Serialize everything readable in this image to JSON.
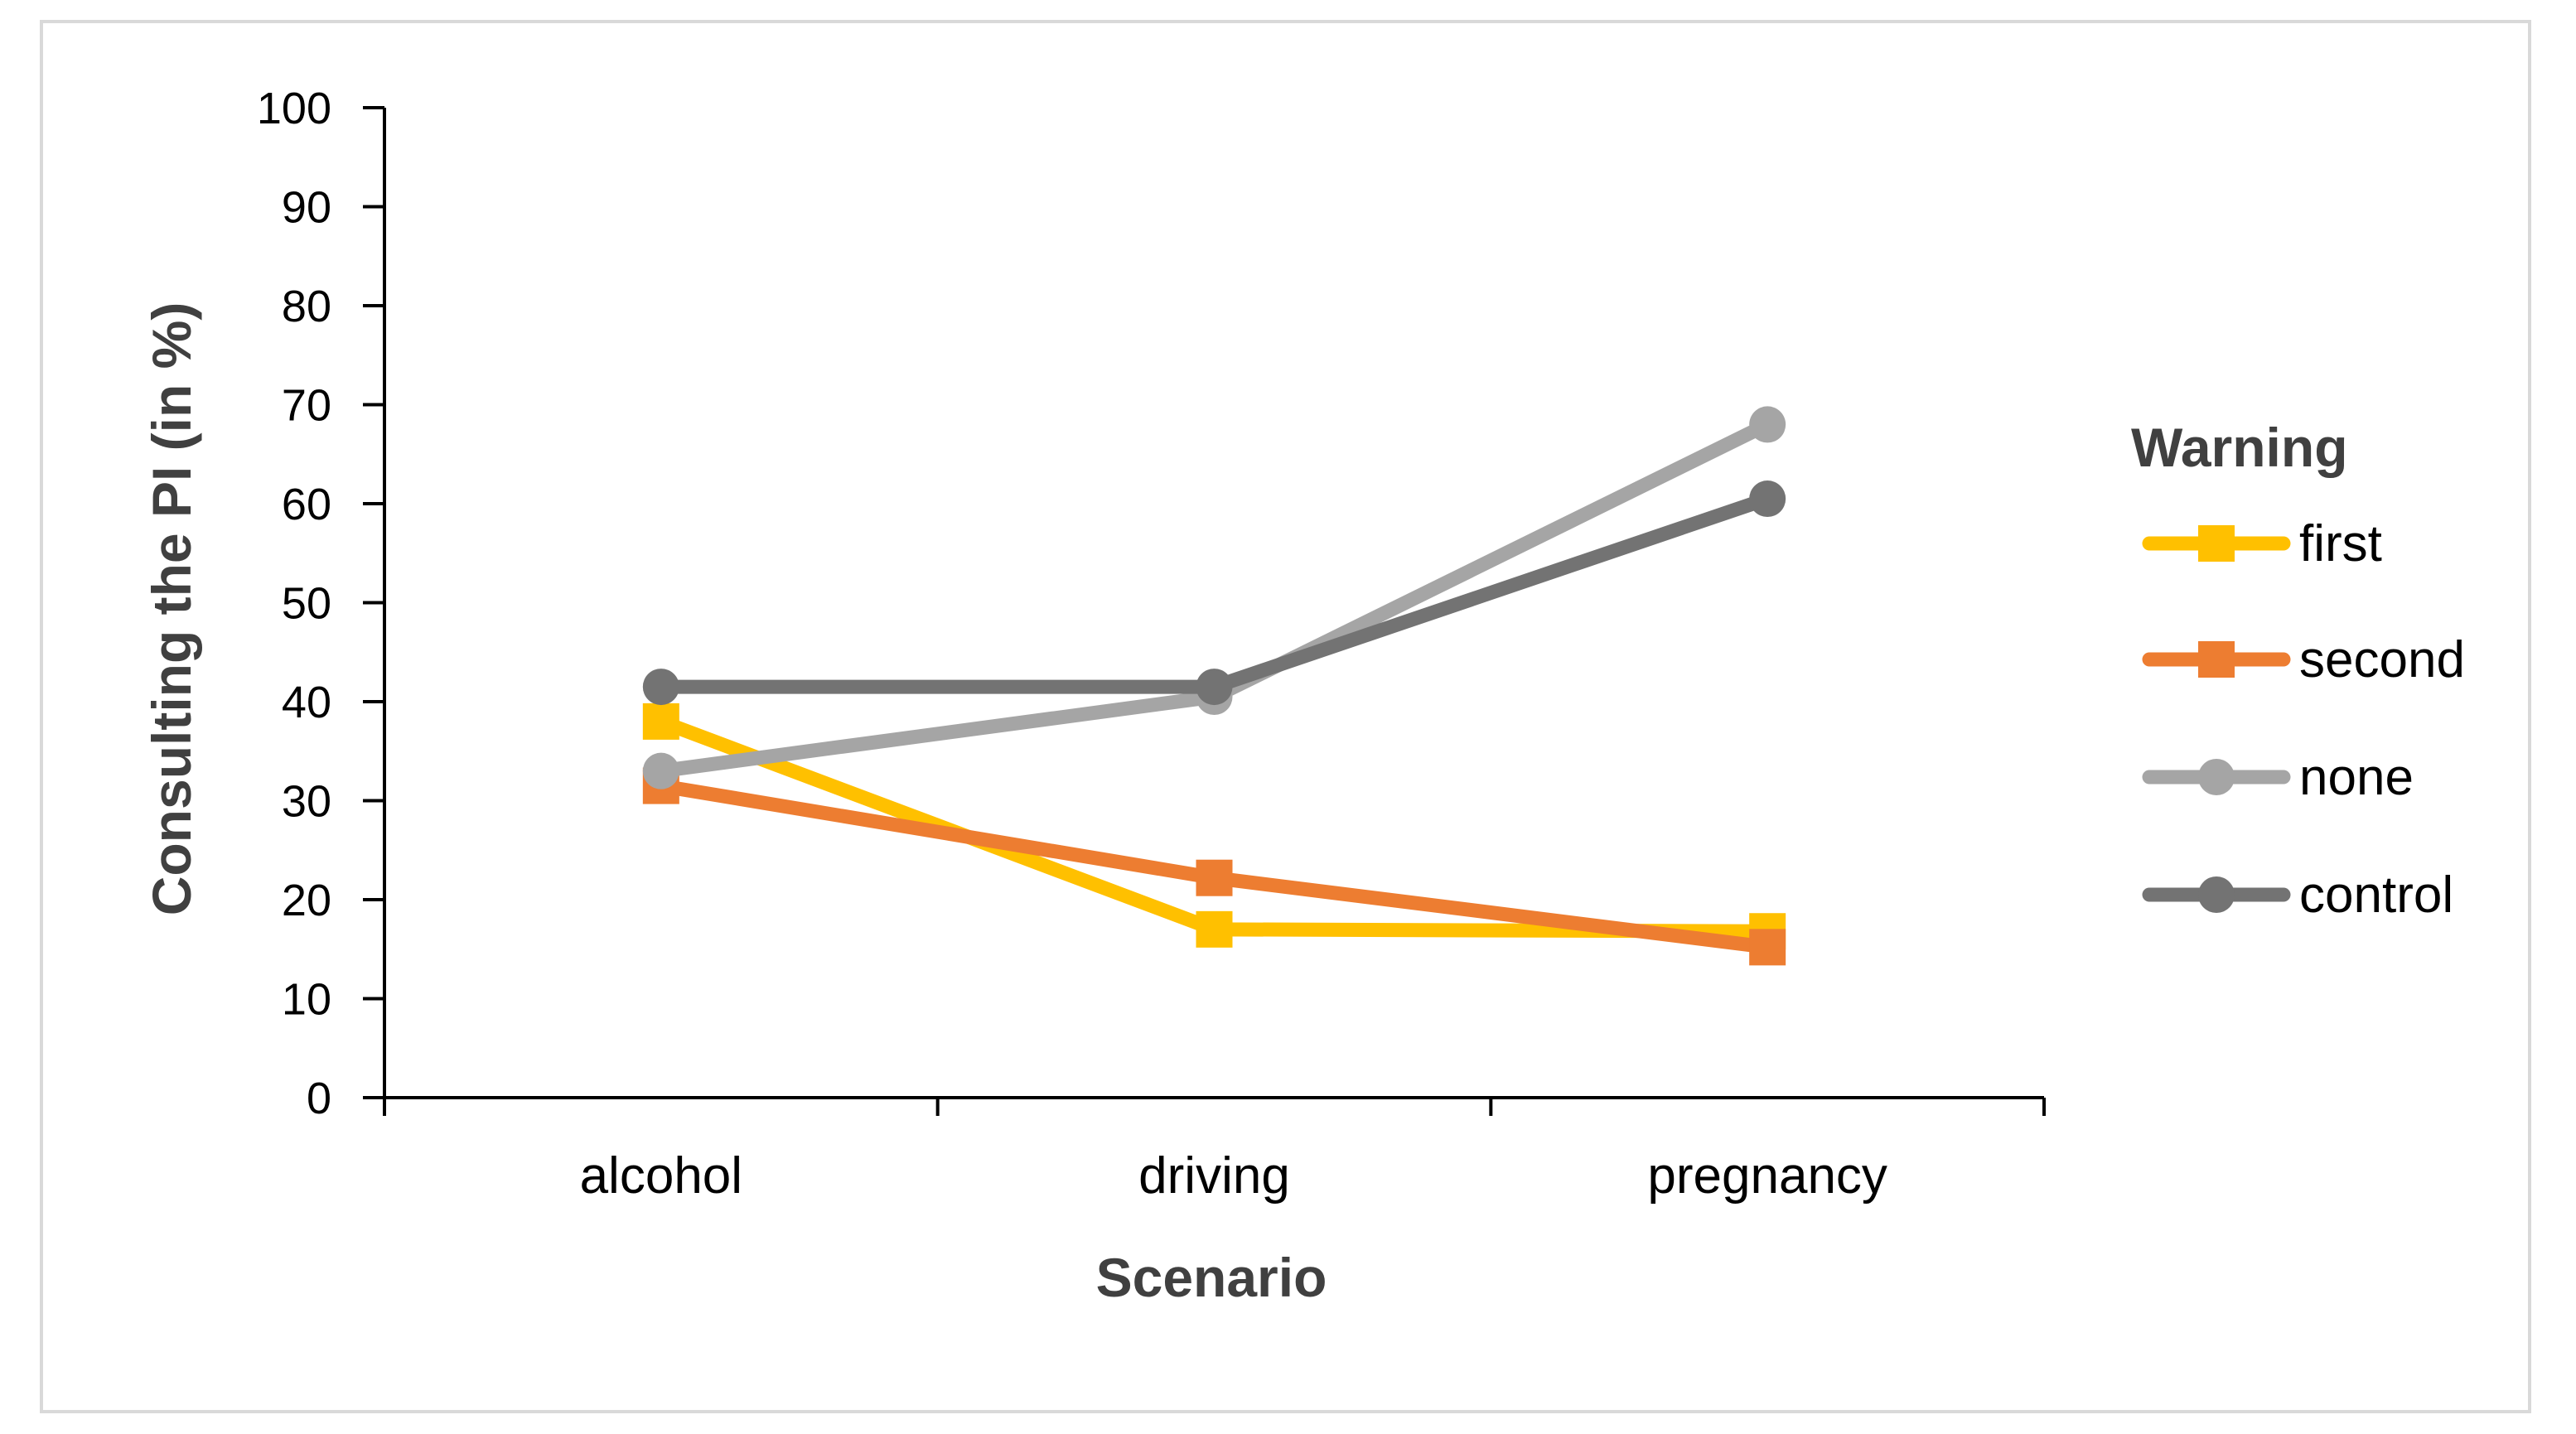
{
  "chart_data": {
    "type": "line",
    "title": "",
    "xlabel": "Scenario",
    "ylabel": "Consulting the PI (in %)",
    "ylim": [
      0,
      100
    ],
    "ytick_step": 10,
    "categories": [
      "alcohol",
      "driving",
      "pregnancy"
    ],
    "legend_title": "Warning",
    "legend_position": "right",
    "grid": false,
    "series": [
      {
        "name": "first",
        "color": "#FFC000",
        "marker": "square",
        "values": [
          38,
          17,
          16.8
        ]
      },
      {
        "name": "second",
        "color": "#ED7D31",
        "marker": "square",
        "values": [
          31.5,
          22.2,
          15.2
        ]
      },
      {
        "name": "none",
        "color": "#A5A5A5",
        "marker": "circle",
        "values": [
          33,
          40.5,
          68
        ]
      },
      {
        "name": "control",
        "color": "#737373",
        "marker": "circle",
        "values": [
          41.5,
          41.5,
          60.5
        ]
      }
    ]
  }
}
